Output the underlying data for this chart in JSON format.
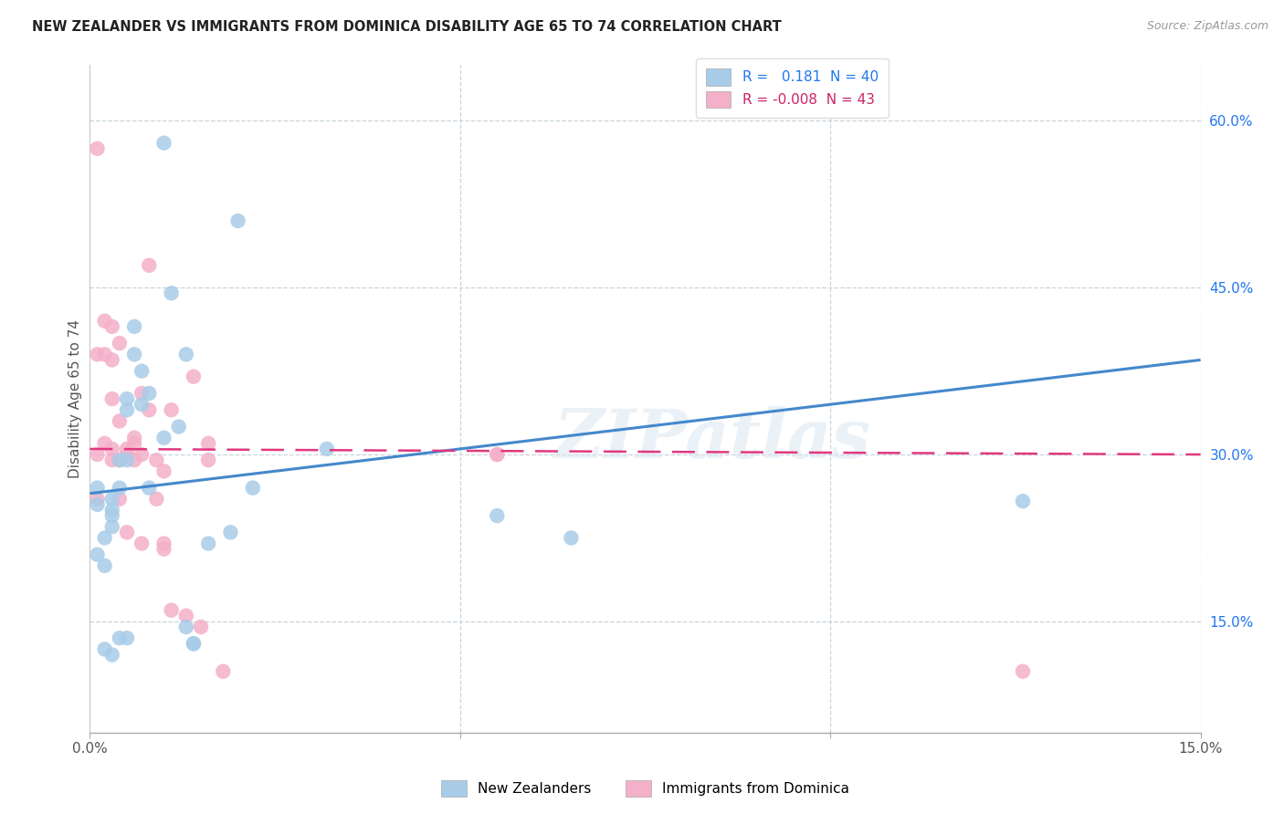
{
  "title": "NEW ZEALANDER VS IMMIGRANTS FROM DOMINICA DISABILITY AGE 65 TO 74 CORRELATION CHART",
  "source": "Source: ZipAtlas.com",
  "ylabel": "Disability Age 65 to 74",
  "ylabel_right_labels": [
    "60.0%",
    "45.0%",
    "30.0%",
    "15.0%"
  ],
  "ylabel_right_values": [
    0.6,
    0.45,
    0.3,
    0.15
  ],
  "xmin": 0.0,
  "xmax": 0.15,
  "ymin": 0.05,
  "ymax": 0.65,
  "legend_blue_label": "R =   0.181  N = 40",
  "legend_pink_label": "R = -0.008  N = 43",
  "legend_nz": "New Zealanders",
  "legend_dom": "Immigrants from Dominica",
  "blue_color": "#a8cce8",
  "pink_color": "#f4b0c8",
  "blue_line_color": "#4488cc",
  "pink_line_color": "#e03880",
  "watermark": "ZIPatlas",
  "nz_line_x0": 0.0,
  "nz_line_y0": 0.265,
  "nz_line_x1": 0.15,
  "nz_line_y1": 0.385,
  "dom_line_x0": 0.0,
  "dom_line_y0": 0.305,
  "dom_line_x1": 0.15,
  "dom_line_y1": 0.3,
  "nz_x": [
    0.001,
    0.001,
    0.001,
    0.002,
    0.002,
    0.002,
    0.003,
    0.003,
    0.003,
    0.003,
    0.004,
    0.004,
    0.005,
    0.005,
    0.005,
    0.005,
    0.006,
    0.006,
    0.007,
    0.007,
    0.008,
    0.008,
    0.01,
    0.01,
    0.011,
    0.012,
    0.013,
    0.013,
    0.014,
    0.014,
    0.016,
    0.019,
    0.02,
    0.022,
    0.032,
    0.055,
    0.065,
    0.126,
    0.004,
    0.003
  ],
  "nz_y": [
    0.27,
    0.255,
    0.21,
    0.225,
    0.2,
    0.125,
    0.26,
    0.25,
    0.245,
    0.235,
    0.295,
    0.27,
    0.35,
    0.34,
    0.295,
    0.135,
    0.415,
    0.39,
    0.345,
    0.375,
    0.355,
    0.27,
    0.58,
    0.315,
    0.445,
    0.325,
    0.39,
    0.145,
    0.13,
    0.13,
    0.22,
    0.23,
    0.51,
    0.27,
    0.305,
    0.245,
    0.225,
    0.258,
    0.135,
    0.12
  ],
  "dom_x": [
    0.001,
    0.001,
    0.001,
    0.001,
    0.002,
    0.002,
    0.002,
    0.003,
    0.003,
    0.003,
    0.003,
    0.003,
    0.004,
    0.004,
    0.004,
    0.004,
    0.005,
    0.005,
    0.005,
    0.006,
    0.006,
    0.006,
    0.007,
    0.007,
    0.007,
    0.008,
    0.008,
    0.009,
    0.009,
    0.01,
    0.01,
    0.01,
    0.011,
    0.011,
    0.013,
    0.014,
    0.015,
    0.016,
    0.016,
    0.018,
    0.055,
    0.055,
    0.126
  ],
  "dom_y": [
    0.575,
    0.39,
    0.3,
    0.26,
    0.42,
    0.39,
    0.31,
    0.415,
    0.385,
    0.35,
    0.305,
    0.295,
    0.4,
    0.33,
    0.295,
    0.26,
    0.305,
    0.3,
    0.23,
    0.315,
    0.31,
    0.295,
    0.355,
    0.3,
    0.22,
    0.47,
    0.34,
    0.295,
    0.26,
    0.285,
    0.22,
    0.215,
    0.34,
    0.16,
    0.155,
    0.37,
    0.145,
    0.31,
    0.295,
    0.105,
    0.3,
    0.3,
    0.105
  ]
}
